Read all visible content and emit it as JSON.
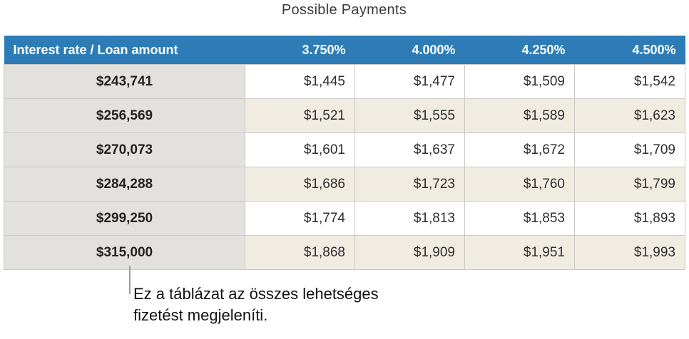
{
  "title": "Possible Payments",
  "table": {
    "header": {
      "corner_label": "Interest rate / Loan amount",
      "rate_columns": [
        "3.750%",
        "4.000%",
        "4.250%",
        "4.500%"
      ]
    },
    "rows": [
      {
        "loan_amount": "$243,741",
        "payments": [
          "$1,445",
          "$1,477",
          "$1,509",
          "$1,542"
        ]
      },
      {
        "loan_amount": "$256,569",
        "payments": [
          "$1,521",
          "$1,555",
          "$1,589",
          "$1,623"
        ]
      },
      {
        "loan_amount": "$270,073",
        "payments": [
          "$1,601",
          "$1,637",
          "$1,672",
          "$1,709"
        ]
      },
      {
        "loan_amount": "$284,288",
        "payments": [
          "$1,686",
          "$1,723",
          "$1,760",
          "$1,799"
        ]
      },
      {
        "loan_amount": "$299,250",
        "payments": [
          "$1,774",
          "$1,813",
          "$1,853",
          "$1,893"
        ]
      },
      {
        "loan_amount": "$315,000",
        "payments": [
          "$1,868",
          "$1,909",
          "$1,951",
          "$1,993"
        ]
      }
    ]
  },
  "callout": {
    "lines": [
      "Ez a táblázat az összes lehetséges",
      "fizetést megjeleníti."
    ]
  },
  "colors": {
    "header_bg": "#2d7cb7",
    "header_text": "#ffffff",
    "row_header_bg": "#e3e1dd",
    "row_alt_bg": "#f0ece2",
    "row_bg": "#ffffff",
    "border": "#cbc9c5",
    "callout_line": "#9e9e9e",
    "body_text": "#2e2e2e"
  }
}
